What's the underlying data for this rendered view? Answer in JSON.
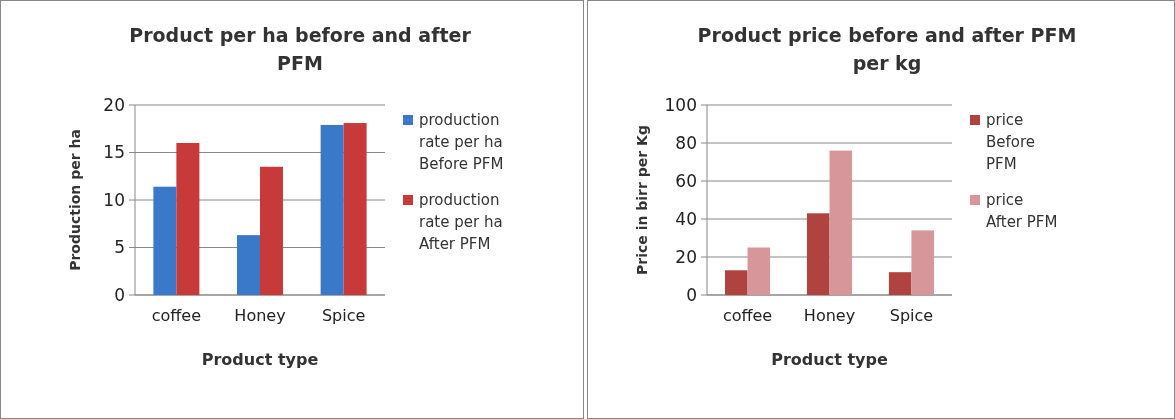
{
  "chart_data": [
    {
      "type": "bar",
      "title": "Product per ha before and after PFM",
      "xlabel": "Product type",
      "ylabel": "Production  per ha",
      "categories": [
        "coffee",
        "Honey",
        "Spice"
      ],
      "series": [
        {
          "name": "production rate per ha Before PFM",
          "color": "#3a78c9",
          "values": [
            11.4,
            6.3,
            17.9
          ]
        },
        {
          "name": "production rate per ha After PFM",
          "color": "#c8393a",
          "values": [
            16,
            13.5,
            18.1
          ]
        }
      ],
      "ylim": [
        0,
        20
      ],
      "yticks": [
        0,
        5,
        10,
        15,
        20
      ],
      "grid": "y",
      "legend": "right"
    },
    {
      "type": "bar",
      "title": "Product price before and after PFM per kg",
      "xlabel": "Product type",
      "ylabel": "Price in birr per Kg",
      "categories": [
        "coffee",
        "Honey",
        "Spice"
      ],
      "series": [
        {
          "name": "price Before PFM",
          "color": "#b0423f",
          "values": [
            13,
            43,
            12
          ]
        },
        {
          "name": "price After PFM",
          "color": "#d6969a",
          "values": [
            25,
            76,
            34
          ]
        }
      ],
      "ylim": [
        0,
        100
      ],
      "yticks": [
        0,
        20,
        40,
        60,
        80,
        100
      ],
      "grid": "y",
      "legend": "right"
    }
  ]
}
